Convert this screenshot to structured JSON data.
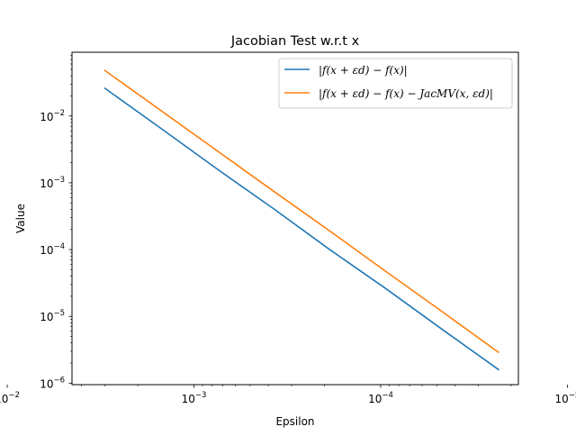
{
  "chart_data": {
    "type": "line",
    "title": "Jacobian Test w.r.t x",
    "xlabel": "Epsilon",
    "ylabel": "Value",
    "xscale": "log",
    "yscale": "log",
    "x_inverted": true,
    "xlim": [
      0.0045,
      1.83e-05
    ],
    "ylim": [
      9.5e-07,
      0.09
    ],
    "x_ticks": [
      {
        "value": 0.01,
        "base": "10",
        "exp": "−2"
      },
      {
        "value": 0.001,
        "base": "10",
        "exp": "−3"
      },
      {
        "value": 0.0001,
        "base": "10",
        "exp": "−4"
      },
      {
        "value": 1e-05,
        "base": "10",
        "exp": "−5"
      }
    ],
    "y_ticks": [
      {
        "value": 1e-06,
        "base": "10",
        "exp": "−6"
      },
      {
        "value": 1e-05,
        "base": "10",
        "exp": "−5"
      },
      {
        "value": 0.0001,
        "base": "10",
        "exp": "−4"
      },
      {
        "value": 0.001,
        "base": "10",
        "exp": "−3"
      },
      {
        "value": 0.01,
        "base": "10",
        "exp": "−2"
      }
    ],
    "grid": false,
    "legend_position": "top-right",
    "series": [
      {
        "name": "|f(x + εd) − f(x)|",
        "color": "#1f77b4",
        "x": [
          0.003,
          0.0015,
          0.00075,
          0.000375,
          0.0001875,
          9.375e-05,
          4.69e-05,
          2.34e-05
        ],
        "y": [
          0.026,
          0.0065,
          0.0016,
          0.00041,
          0.0001,
          2.6e-05,
          6.4e-06,
          1.6e-06
        ]
      },
      {
        "name": "|f(x + εd) − f(x) − JacMV(x, εd)|",
        "color": "#ff7f0e",
        "x": [
          0.003,
          0.0015,
          0.00075,
          0.000375,
          0.0001875,
          9.375e-05,
          4.69e-05,
          2.34e-05
        ],
        "y": [
          0.048,
          0.012,
          0.003,
          0.00075,
          0.00019,
          4.7e-05,
          1.18e-05,
          2.9e-06
        ]
      }
    ]
  }
}
